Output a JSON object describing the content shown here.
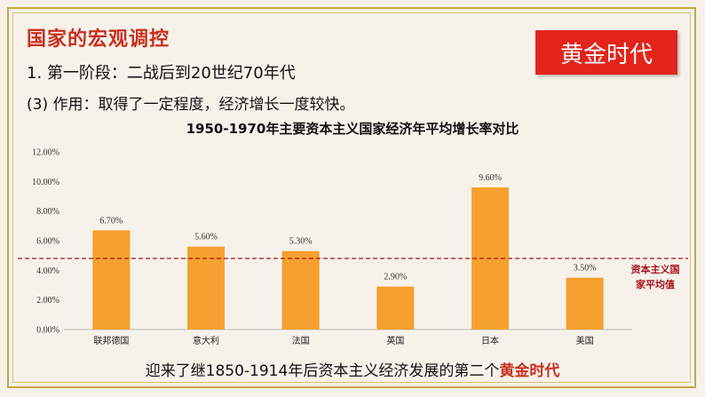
{
  "header": {
    "section_title": "国家的宏观调控",
    "badge": "黄金时代",
    "line1": "1. 第一阶段：二战后到20世纪70年代",
    "line2": "(3) 作用：取得了一定程度，经济增长一度较快。"
  },
  "chart_data": {
    "type": "bar",
    "title": "1950-1970年主要资本主义国家经济年平均增长率对比",
    "categories": [
      "联邦德国",
      "意大利",
      "法国",
      "英国",
      "日本",
      "美国"
    ],
    "values": [
      6.7,
      5.6,
      5.3,
      2.9,
      9.6,
      3.5
    ],
    "value_labels": [
      "6.70%",
      "5.60%",
      "5.30%",
      "2.90%",
      "9.60%",
      "3.50%"
    ],
    "yticks": [
      "0.00%",
      "2.00%",
      "4.00%",
      "6.00%",
      "8.00%",
      "10.00%",
      "12.00%"
    ],
    "ylim": [
      0,
      12
    ],
    "average": {
      "value": 4.8,
      "label_lines": [
        "资本主义国",
        "家平均值"
      ]
    },
    "colors": {
      "bar": "#f5a02f",
      "average_line": "#a8101a"
    },
    "grid": false
  },
  "footer": {
    "text_before": "迎来了继1850-1914年后资本主义经济发展的第二个",
    "highlight": "黄金时代"
  },
  "colors": {
    "accent": "#c8301f",
    "badge_bg": "#e3241b",
    "frame": "#c9a54a"
  }
}
